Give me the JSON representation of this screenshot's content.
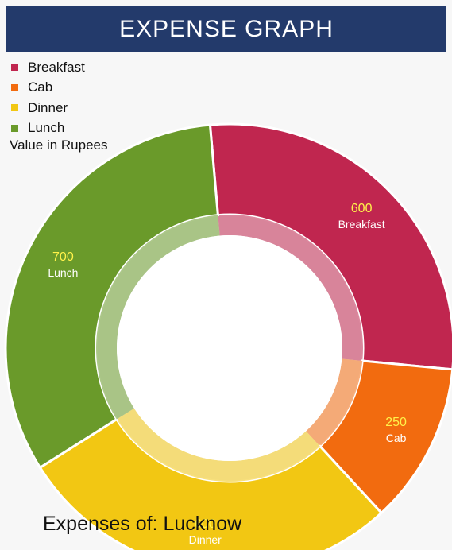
{
  "header": {
    "title": "EXPENSE GRAPH",
    "background": "#233a6b"
  },
  "legend": {
    "items": [
      {
        "label": "Breakfast",
        "color": "#c0264f"
      },
      {
        "label": "Cab",
        "color": "#f26b0f"
      },
      {
        "label": "Dinner",
        "color": "#f2c713"
      },
      {
        "label": "Lunch",
        "color": "#6a9a2a"
      }
    ],
    "unit_note": "Value in Rupees"
  },
  "chart_data": {
    "type": "pie",
    "donut": true,
    "categories": [
      "Breakfast",
      "Cab",
      "Dinner",
      "Lunch"
    ],
    "values": [
      600,
      250,
      600,
      700
    ],
    "colors": [
      "#c0264f",
      "#f26b0f",
      "#f2c713",
      "#6a9a2a"
    ],
    "value_label_color": "#fff24a",
    "name_label_color": "#ffffff"
  },
  "footer": {
    "text": "Expenses of: Lucknow"
  }
}
